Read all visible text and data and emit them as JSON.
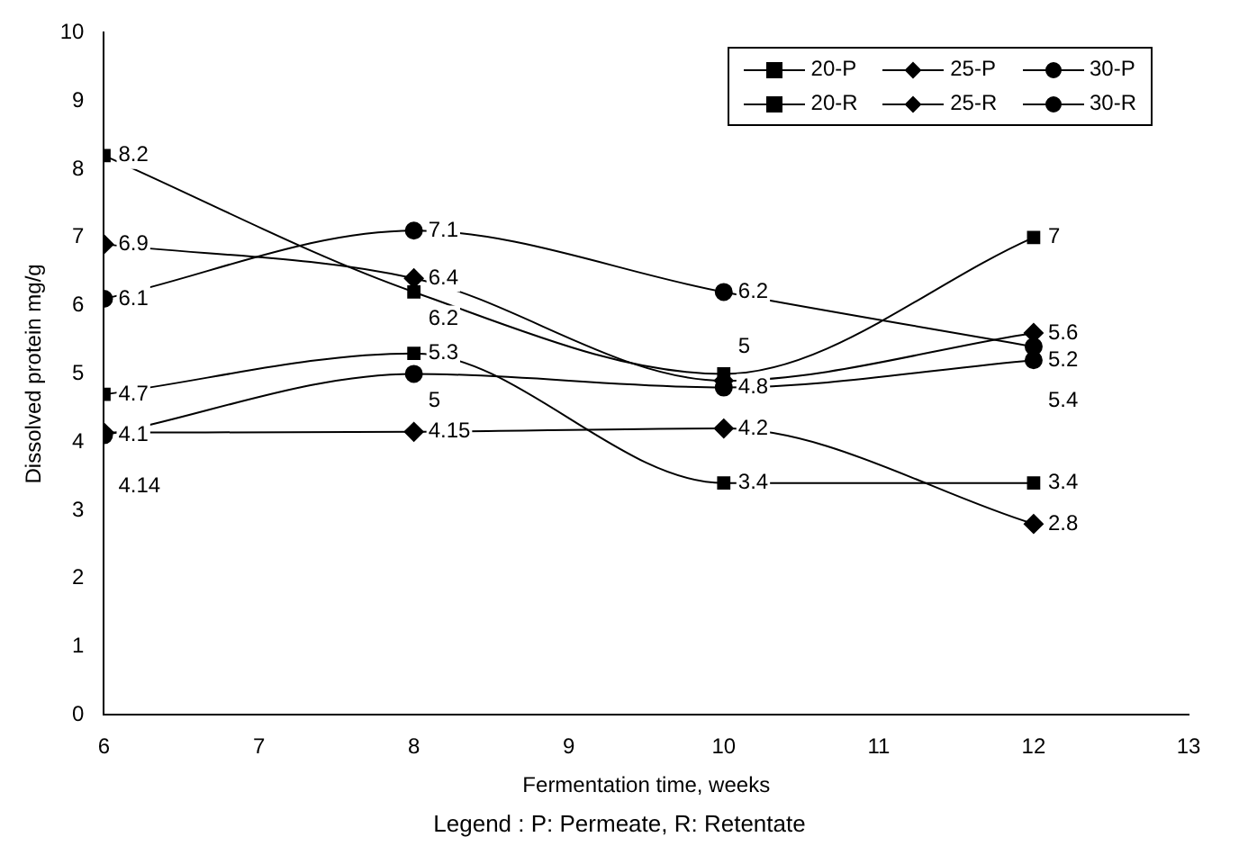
{
  "chart_data": {
    "type": "line",
    "xlabel": "Fermentation time, weeks",
    "ylabel": "Dissolved protein mg/g",
    "x": [
      6,
      8,
      10,
      12
    ],
    "xlim": [
      6,
      13
    ],
    "xticks": [
      6,
      7,
      8,
      9,
      10,
      11,
      12,
      13
    ],
    "ylim": [
      0,
      10
    ],
    "yticks": [
      0,
      1,
      2,
      3,
      4,
      5,
      6,
      7,
      8,
      9,
      10
    ],
    "grid": false,
    "legend": "top right",
    "annotations": [
      "Legend : P: Permeate, R: Retentate"
    ],
    "series": [
      {
        "name": "20-P",
        "color": "#000000",
        "marker": "square",
        "values": [
          4.7,
          5.3,
          3.4,
          3.4
        ],
        "value_labels": [
          "4.7",
          "5.3",
          "3.4",
          "3.4"
        ]
      },
      {
        "name": "25-P",
        "color": "#000000",
        "marker": "diamond",
        "values": [
          6.9,
          6.4,
          4.9,
          5.6
        ],
        "value_labels": [
          "6.9",
          "6.4",
          null,
          "5.6"
        ]
      },
      {
        "name": "30-P",
        "color": "#000000",
        "marker": "circle",
        "values": [
          4.1,
          5,
          4.8,
          5.2
        ],
        "value_labels": [
          "4.1",
          "5",
          "4.8",
          "5.2"
        ]
      },
      {
        "name": "20-R",
        "color": "#000000",
        "marker": "square",
        "values": [
          8.2,
          6.2,
          5,
          7
        ],
        "value_labels": [
          "8.2",
          "6.2",
          "5",
          "7"
        ]
      },
      {
        "name": "25-R",
        "color": "#000000",
        "marker": "diamond",
        "values": [
          4.14,
          4.15,
          4.2,
          2.8
        ],
        "value_labels": [
          "4.14",
          "4.15",
          "4.2",
          "2.8"
        ]
      },
      {
        "name": "30-R",
        "color": "#000000",
        "marker": "circle",
        "values": [
          6.1,
          7.1,
          6.2,
          5.4
        ],
        "value_labels": [
          "6.1",
          "7.1",
          "6.2",
          "5.4"
        ]
      }
    ]
  }
}
